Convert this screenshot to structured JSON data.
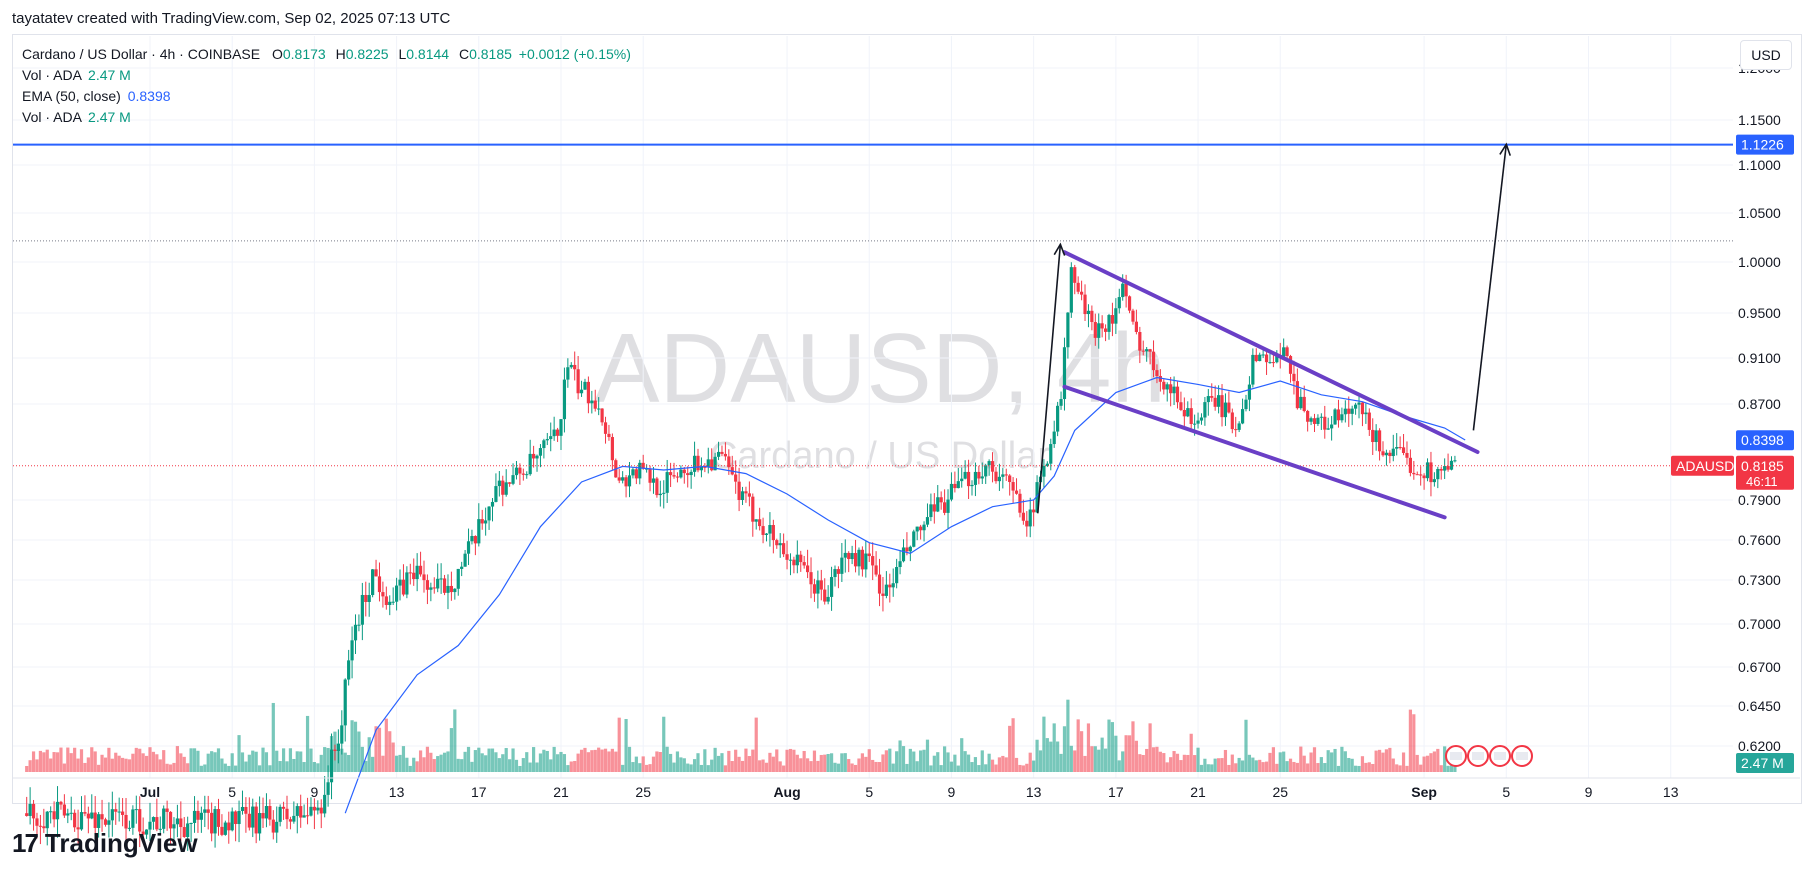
{
  "caption": "tayatatev created with TradingView.com, Sep 02, 2025 07:13 UTC",
  "currency_button": "USD",
  "legend": {
    "main_label": "Cardano / US Dollar · 4h · COINBASE",
    "o_label": "O",
    "o": "0.8173",
    "h_label": "H",
    "h": "0.8225",
    "l_label": "L",
    "l": "0.8144",
    "c_label": "C",
    "c": "0.8185",
    "change": "+0.0012 (+0.15%)",
    "vol1_label": "Vol · ADA",
    "vol1_value": "2.47 M",
    "ema_label": "EMA (50, close)",
    "ema_value": "0.8398",
    "vol2_label": "Vol · ADA",
    "vol2_value": "2.47 M"
  },
  "watermark": {
    "symbol": "ADAUSD, 4h",
    "name": "Cardano / US Dollar"
  },
  "brand": {
    "logo_mark": "17",
    "logo_text": "TradingView"
  },
  "colors": {
    "up": "#089981",
    "down": "#f23645",
    "ema": "#2962ff",
    "channel": "#6a3fc6",
    "hline": "#2962ff",
    "arrow": "#131722"
  },
  "chart_data": {
    "type": "candlestick",
    "symbol": "ADAUSD",
    "timeframe": "4h",
    "y_axis_labels": [
      "1.2000",
      "1.1500",
      "1.1000",
      "1.0500",
      "1.0000",
      "0.9500",
      "0.9100",
      "0.8700",
      "0.7900",
      "0.7600",
      "0.7300",
      "0.7000",
      "0.6700",
      "0.6450",
      "0.6200"
    ],
    "y_axis_values": [
      1.2,
      1.15,
      1.1,
      1.05,
      1.0,
      0.95,
      0.91,
      0.87,
      0.79,
      0.76,
      0.73,
      0.7,
      0.67,
      0.645,
      0.62
    ],
    "x_axis_labels": [
      {
        "label": "Jul",
        "day": 1,
        "bold": true
      },
      {
        "label": "5",
        "day": 5
      },
      {
        "label": "9",
        "day": 9
      },
      {
        "label": "13",
        "day": 13
      },
      {
        "label": "17",
        "day": 17
      },
      {
        "label": "21",
        "day": 21
      },
      {
        "label": "25",
        "day": 25
      },
      {
        "label": "Aug",
        "day": 32,
        "bold": true
      },
      {
        "label": "5",
        "day": 36
      },
      {
        "label": "9",
        "day": 40
      },
      {
        "label": "13",
        "day": 44
      },
      {
        "label": "17",
        "day": 48
      },
      {
        "label": "21",
        "day": 52
      },
      {
        "label": "25",
        "day": 56
      },
      {
        "label": "Sep",
        "day": 63,
        "bold": true
      },
      {
        "label": "5",
        "day": 67
      },
      {
        "label": "9",
        "day": 71
      },
      {
        "label": "13",
        "day": 75
      }
    ],
    "price_path": [
      [
        -5,
        0.578
      ],
      [
        -1,
        0.575
      ],
      [
        3,
        0.572
      ],
      [
        7,
        0.574
      ],
      [
        9,
        0.578
      ],
      [
        9.5,
        0.585
      ],
      [
        10.5,
        0.635
      ],
      [
        11,
        0.69
      ],
      [
        12,
        0.735
      ],
      [
        13,
        0.715
      ],
      [
        14,
        0.738
      ],
      [
        15,
        0.722
      ],
      [
        16,
        0.732
      ],
      [
        17,
        0.76
      ],
      [
        18,
        0.8
      ],
      [
        19,
        0.81
      ],
      [
        20,
        0.825
      ],
      [
        21,
        0.845
      ],
      [
        21.5,
        0.905
      ],
      [
        22,
        0.885
      ],
      [
        23,
        0.872
      ],
      [
        24,
        0.805
      ],
      [
        25,
        0.815
      ],
      [
        26,
        0.8
      ],
      [
        27,
        0.815
      ],
      [
        28,
        0.822
      ],
      [
        29,
        0.825
      ],
      [
        30,
        0.79
      ],
      [
        31,
        0.772
      ],
      [
        32,
        0.752
      ],
      [
        33,
        0.735
      ],
      [
        34,
        0.718
      ],
      [
        35,
        0.748
      ],
      [
        36,
        0.745
      ],
      [
        37,
        0.72
      ],
      [
        38,
        0.752
      ],
      [
        39,
        0.775
      ],
      [
        40,
        0.792
      ],
      [
        41,
        0.808
      ],
      [
        42,
        0.82
      ],
      [
        43,
        0.8
      ],
      [
        44,
        0.775
      ],
      [
        45,
        0.84
      ],
      [
        45.5,
        0.875
      ],
      [
        46,
        0.99
      ],
      [
        47,
        0.935
      ],
      [
        48,
        0.945
      ],
      [
        48.5,
        0.975
      ],
      [
        49,
        0.935
      ],
      [
        50,
        0.905
      ],
      [
        51,
        0.878
      ],
      [
        52,
        0.855
      ],
      [
        53,
        0.875
      ],
      [
        54,
        0.85
      ],
      [
        55,
        0.915
      ],
      [
        56,
        0.905
      ],
      [
        56.5,
        0.918
      ],
      [
        57,
        0.875
      ],
      [
        58,
        0.852
      ],
      [
        59,
        0.858
      ],
      [
        60,
        0.865
      ],
      [
        61,
        0.835
      ],
      [
        62,
        0.825
      ],
      [
        63,
        0.815
      ],
      [
        64,
        0.812
      ],
      [
        64.5,
        0.8185
      ]
    ],
    "ema_50": [
      [
        10.5,
        0.578
      ],
      [
        12,
        0.63
      ],
      [
        14,
        0.665
      ],
      [
        16,
        0.685
      ],
      [
        18,
        0.72
      ],
      [
        20,
        0.77
      ],
      [
        22,
        0.805
      ],
      [
        24,
        0.818
      ],
      [
        26,
        0.815
      ],
      [
        28,
        0.818
      ],
      [
        30,
        0.812
      ],
      [
        32,
        0.795
      ],
      [
        34,
        0.775
      ],
      [
        36,
        0.758
      ],
      [
        38,
        0.75
      ],
      [
        40,
        0.77
      ],
      [
        42,
        0.785
      ],
      [
        44,
        0.79
      ],
      [
        45,
        0.81
      ],
      [
        46,
        0.848
      ],
      [
        48,
        0.88
      ],
      [
        50,
        0.893
      ],
      [
        52,
        0.887
      ],
      [
        54,
        0.88
      ],
      [
        56,
        0.89
      ],
      [
        58,
        0.878
      ],
      [
        60,
        0.872
      ],
      [
        62,
        0.86
      ],
      [
        64,
        0.85
      ],
      [
        65,
        0.84
      ]
    ],
    "channel_upper": [
      [
        45.5,
        1.01
      ],
      [
        65.6,
        0.83
      ]
    ],
    "channel_lower": [
      [
        45.5,
        0.885
      ],
      [
        64,
        0.777
      ]
    ],
    "arrow_up_1": [
      [
        44.2,
        0.78
      ],
      [
        45.3,
        1.018
      ]
    ],
    "arrow_up_2": [
      [
        65.4,
        0.848
      ],
      [
        67.0,
        1.123
      ]
    ],
    "dotted_high": 1.0215,
    "target_line": {
      "value": 1.1226,
      "label": "1.1226"
    },
    "last_price": {
      "value": 0.8185,
      "label": "0.8185",
      "symbol": "ADAUSD",
      "countdown": "46:11"
    },
    "ema_value": {
      "value": 0.8398,
      "label": "0.8398"
    },
    "volume_label": "2.47 M",
    "flag_badges": [
      "US",
      "US",
      "US",
      "US"
    ]
  }
}
